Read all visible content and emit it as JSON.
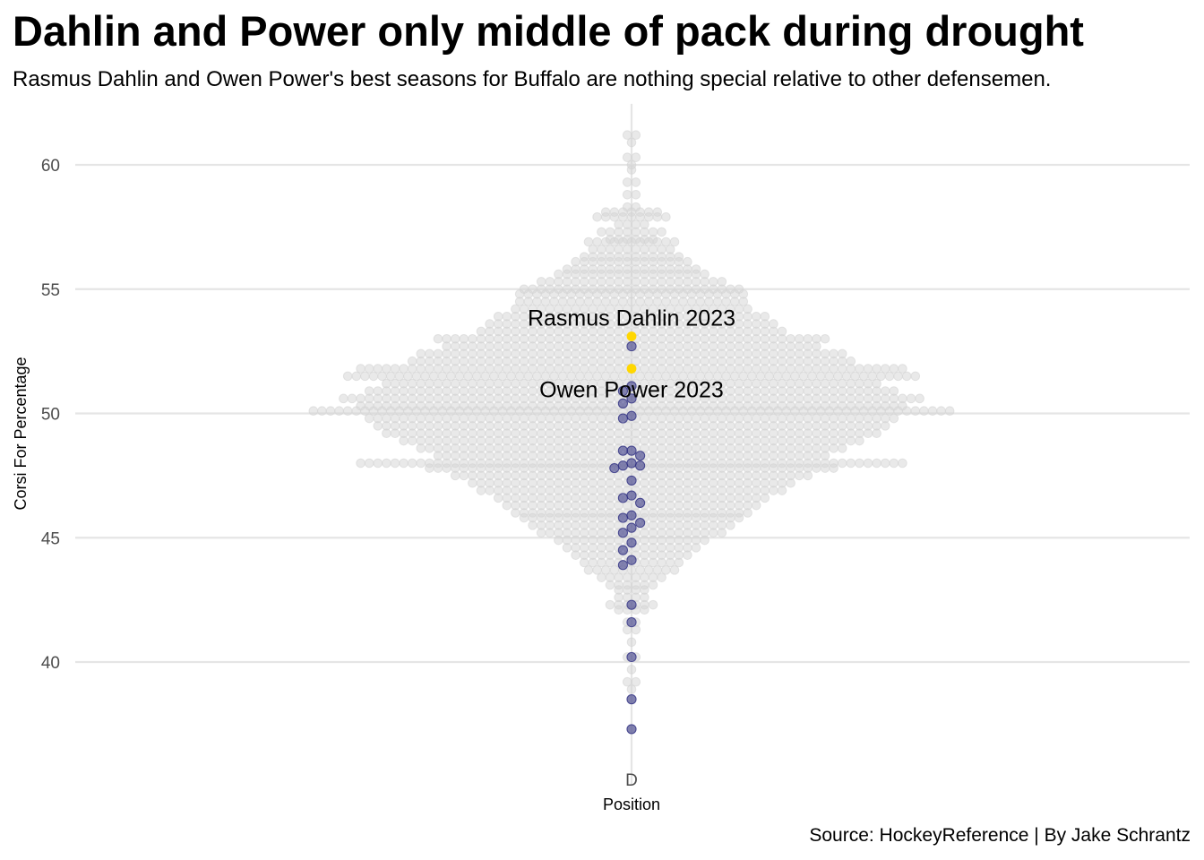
{
  "chart_data": {
    "type": "scatter",
    "subtype": "beeswarm",
    "title": "Dahlin and Power only middle of pack during drought",
    "subtitle": "Rasmus Dahlin and Owen Power's best seasons for Buffalo are nothing special relative to other defensemen.",
    "caption": "Source: HockeyReference | By Jake Schrantz",
    "xlabel": "Position",
    "ylabel": "Corsi For Percentage",
    "categories": [
      "D"
    ],
    "ylim": [
      35.2,
      62.6
    ],
    "yticks": [
      "40",
      "45",
      "50",
      "55",
      "60"
    ],
    "grid": true,
    "colors": {
      "other": "#d3d3d3",
      "buffalo": "#2b2b7f",
      "highlight": "#ffd700"
    },
    "buffalo_values": [
      52.7,
      51.1,
      50.9,
      50.6,
      50.4,
      49.9,
      49.8,
      48.5,
      48.5,
      48.3,
      48.0,
      47.9,
      47.9,
      47.8,
      47.3,
      46.7,
      46.6,
      46.4,
      45.9,
      45.8,
      45.6,
      45.4,
      45.2,
      44.8,
      44.5,
      44.1,
      43.9,
      42.3,
      41.6,
      40.2,
      38.5,
      37.3
    ],
    "highlights": [
      {
        "label": "Rasmus Dahlin 2023",
        "value": 53.1
      },
      {
        "label": "Owen Power 2023",
        "value": 51.8
      }
    ],
    "distribution": [
      {
        "value": 61.2,
        "count": 2
      },
      {
        "value": 60.9,
        "count": 1
      },
      {
        "value": 60.3,
        "count": 2
      },
      {
        "value": 60.0,
        "count": 1
      },
      {
        "value": 59.8,
        "count": 1
      },
      {
        "value": 59.3,
        "count": 2
      },
      {
        "value": 58.8,
        "count": 2
      },
      {
        "value": 58.3,
        "count": 2
      },
      {
        "value": 58.1,
        "count": 7
      },
      {
        "value": 57.9,
        "count": 9
      },
      {
        "value": 57.6,
        "count": 4
      },
      {
        "value": 57.3,
        "count": 8
      },
      {
        "value": 57.0,
        "count": 6
      },
      {
        "value": 56.9,
        "count": 11
      },
      {
        "value": 56.6,
        "count": 10
      },
      {
        "value": 56.3,
        "count": 12
      },
      {
        "value": 56.1,
        "count": 14
      },
      {
        "value": 55.8,
        "count": 16
      },
      {
        "value": 55.6,
        "count": 18
      },
      {
        "value": 55.3,
        "count": 22
      },
      {
        "value": 55.0,
        "count": 26
      },
      {
        "value": 54.8,
        "count": 27
      },
      {
        "value": 54.5,
        "count": 27
      },
      {
        "value": 54.2,
        "count": 28
      },
      {
        "value": 53.9,
        "count": 32
      },
      {
        "value": 53.6,
        "count": 34
      },
      {
        "value": 53.3,
        "count": 36
      },
      {
        "value": 53.0,
        "count": 46
      },
      {
        "value": 52.7,
        "count": 44
      },
      {
        "value": 52.4,
        "count": 50
      },
      {
        "value": 52.1,
        "count": 52
      },
      {
        "value": 51.8,
        "count": 64
      },
      {
        "value": 51.5,
        "count": 67
      },
      {
        "value": 51.2,
        "count": 58
      },
      {
        "value": 50.9,
        "count": 62
      },
      {
        "value": 50.6,
        "count": 68
      },
      {
        "value": 50.3,
        "count": 64
      },
      {
        "value": 50.1,
        "count": 75
      },
      {
        "value": 49.8,
        "count": 62
      },
      {
        "value": 49.5,
        "count": 60
      },
      {
        "value": 49.2,
        "count": 58
      },
      {
        "value": 48.9,
        "count": 54
      },
      {
        "value": 48.6,
        "count": 50
      },
      {
        "value": 48.3,
        "count": 46
      },
      {
        "value": 48.0,
        "count": 64
      },
      {
        "value": 47.8,
        "count": 48
      },
      {
        "value": 47.5,
        "count": 42
      },
      {
        "value": 47.2,
        "count": 38
      },
      {
        "value": 46.9,
        "count": 36
      },
      {
        "value": 46.6,
        "count": 32
      },
      {
        "value": 46.3,
        "count": 30
      },
      {
        "value": 46.0,
        "count": 28
      },
      {
        "value": 45.8,
        "count": 26
      },
      {
        "value": 45.5,
        "count": 24
      },
      {
        "value": 45.2,
        "count": 22
      },
      {
        "value": 44.9,
        "count": 18
      },
      {
        "value": 44.6,
        "count": 16
      },
      {
        "value": 44.3,
        "count": 14
      },
      {
        "value": 44.0,
        "count": 12
      },
      {
        "value": 43.7,
        "count": 11
      },
      {
        "value": 43.4,
        "count": 8
      },
      {
        "value": 43.1,
        "count": 6
      },
      {
        "value": 42.9,
        "count": 4
      },
      {
        "value": 42.6,
        "count": 4
      },
      {
        "value": 42.3,
        "count": 6
      },
      {
        "value": 42.1,
        "count": 4
      },
      {
        "value": 41.6,
        "count": 2
      },
      {
        "value": 41.3,
        "count": 2
      },
      {
        "value": 40.8,
        "count": 1
      },
      {
        "value": 40.2,
        "count": 2
      },
      {
        "value": 39.7,
        "count": 1
      },
      {
        "value": 39.2,
        "count": 2
      },
      {
        "value": 38.9,
        "count": 1
      },
      {
        "value": 38.5,
        "count": 1
      },
      {
        "value": 37.3,
        "count": 1
      }
    ]
  }
}
